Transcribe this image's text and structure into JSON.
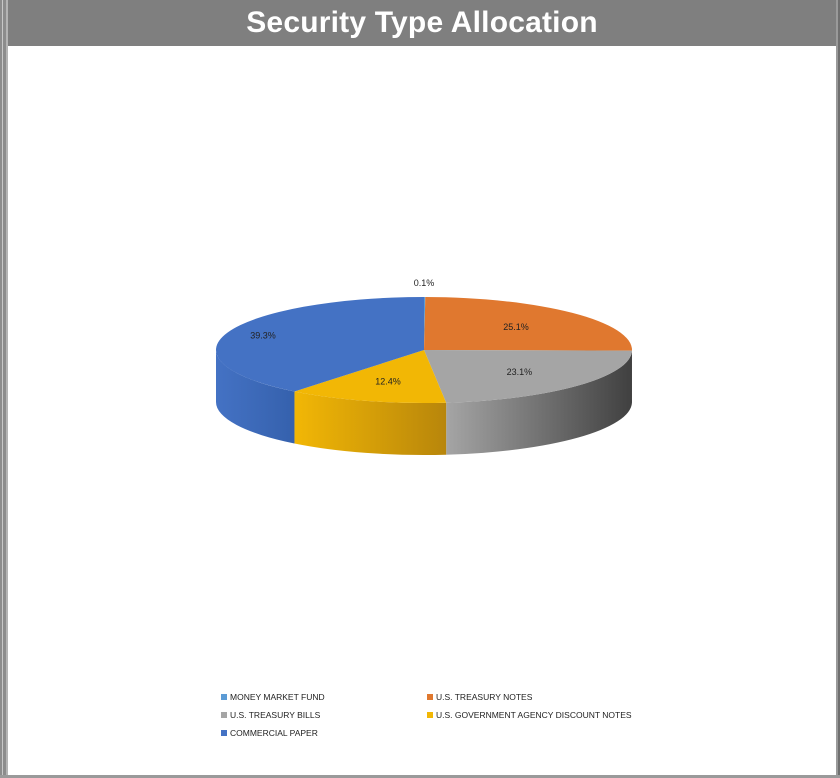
{
  "title": "Security Type Allocation",
  "chart_data": {
    "type": "pie",
    "title": "Security Type Allocation",
    "categories": [
      "MONEY MARKET FUND",
      "U.S. TREASURY NOTES",
      "U.S. TREASURY BILLS",
      "U.S. GOVERNMENT AGENCY DISCOUNT NOTES",
      "COMMERCIAL PAPER"
    ],
    "values": [
      0.1,
      25.1,
      23.1,
      12.4,
      39.3
    ],
    "labels": [
      "0.1%",
      "25.1%",
      "23.1%",
      "12.4%",
      "39.3%"
    ],
    "colors": [
      "#5b9bd5",
      "#e0782f",
      "#a5a5a5",
      "#f2b705",
      "#4472c4"
    ],
    "side_colors": [
      "#2e5f8f",
      "#9c4f1a",
      "#404040",
      "#b8860b",
      "#3561ad"
    ],
    "style": "3d-pie",
    "legend_position": "bottom"
  }
}
